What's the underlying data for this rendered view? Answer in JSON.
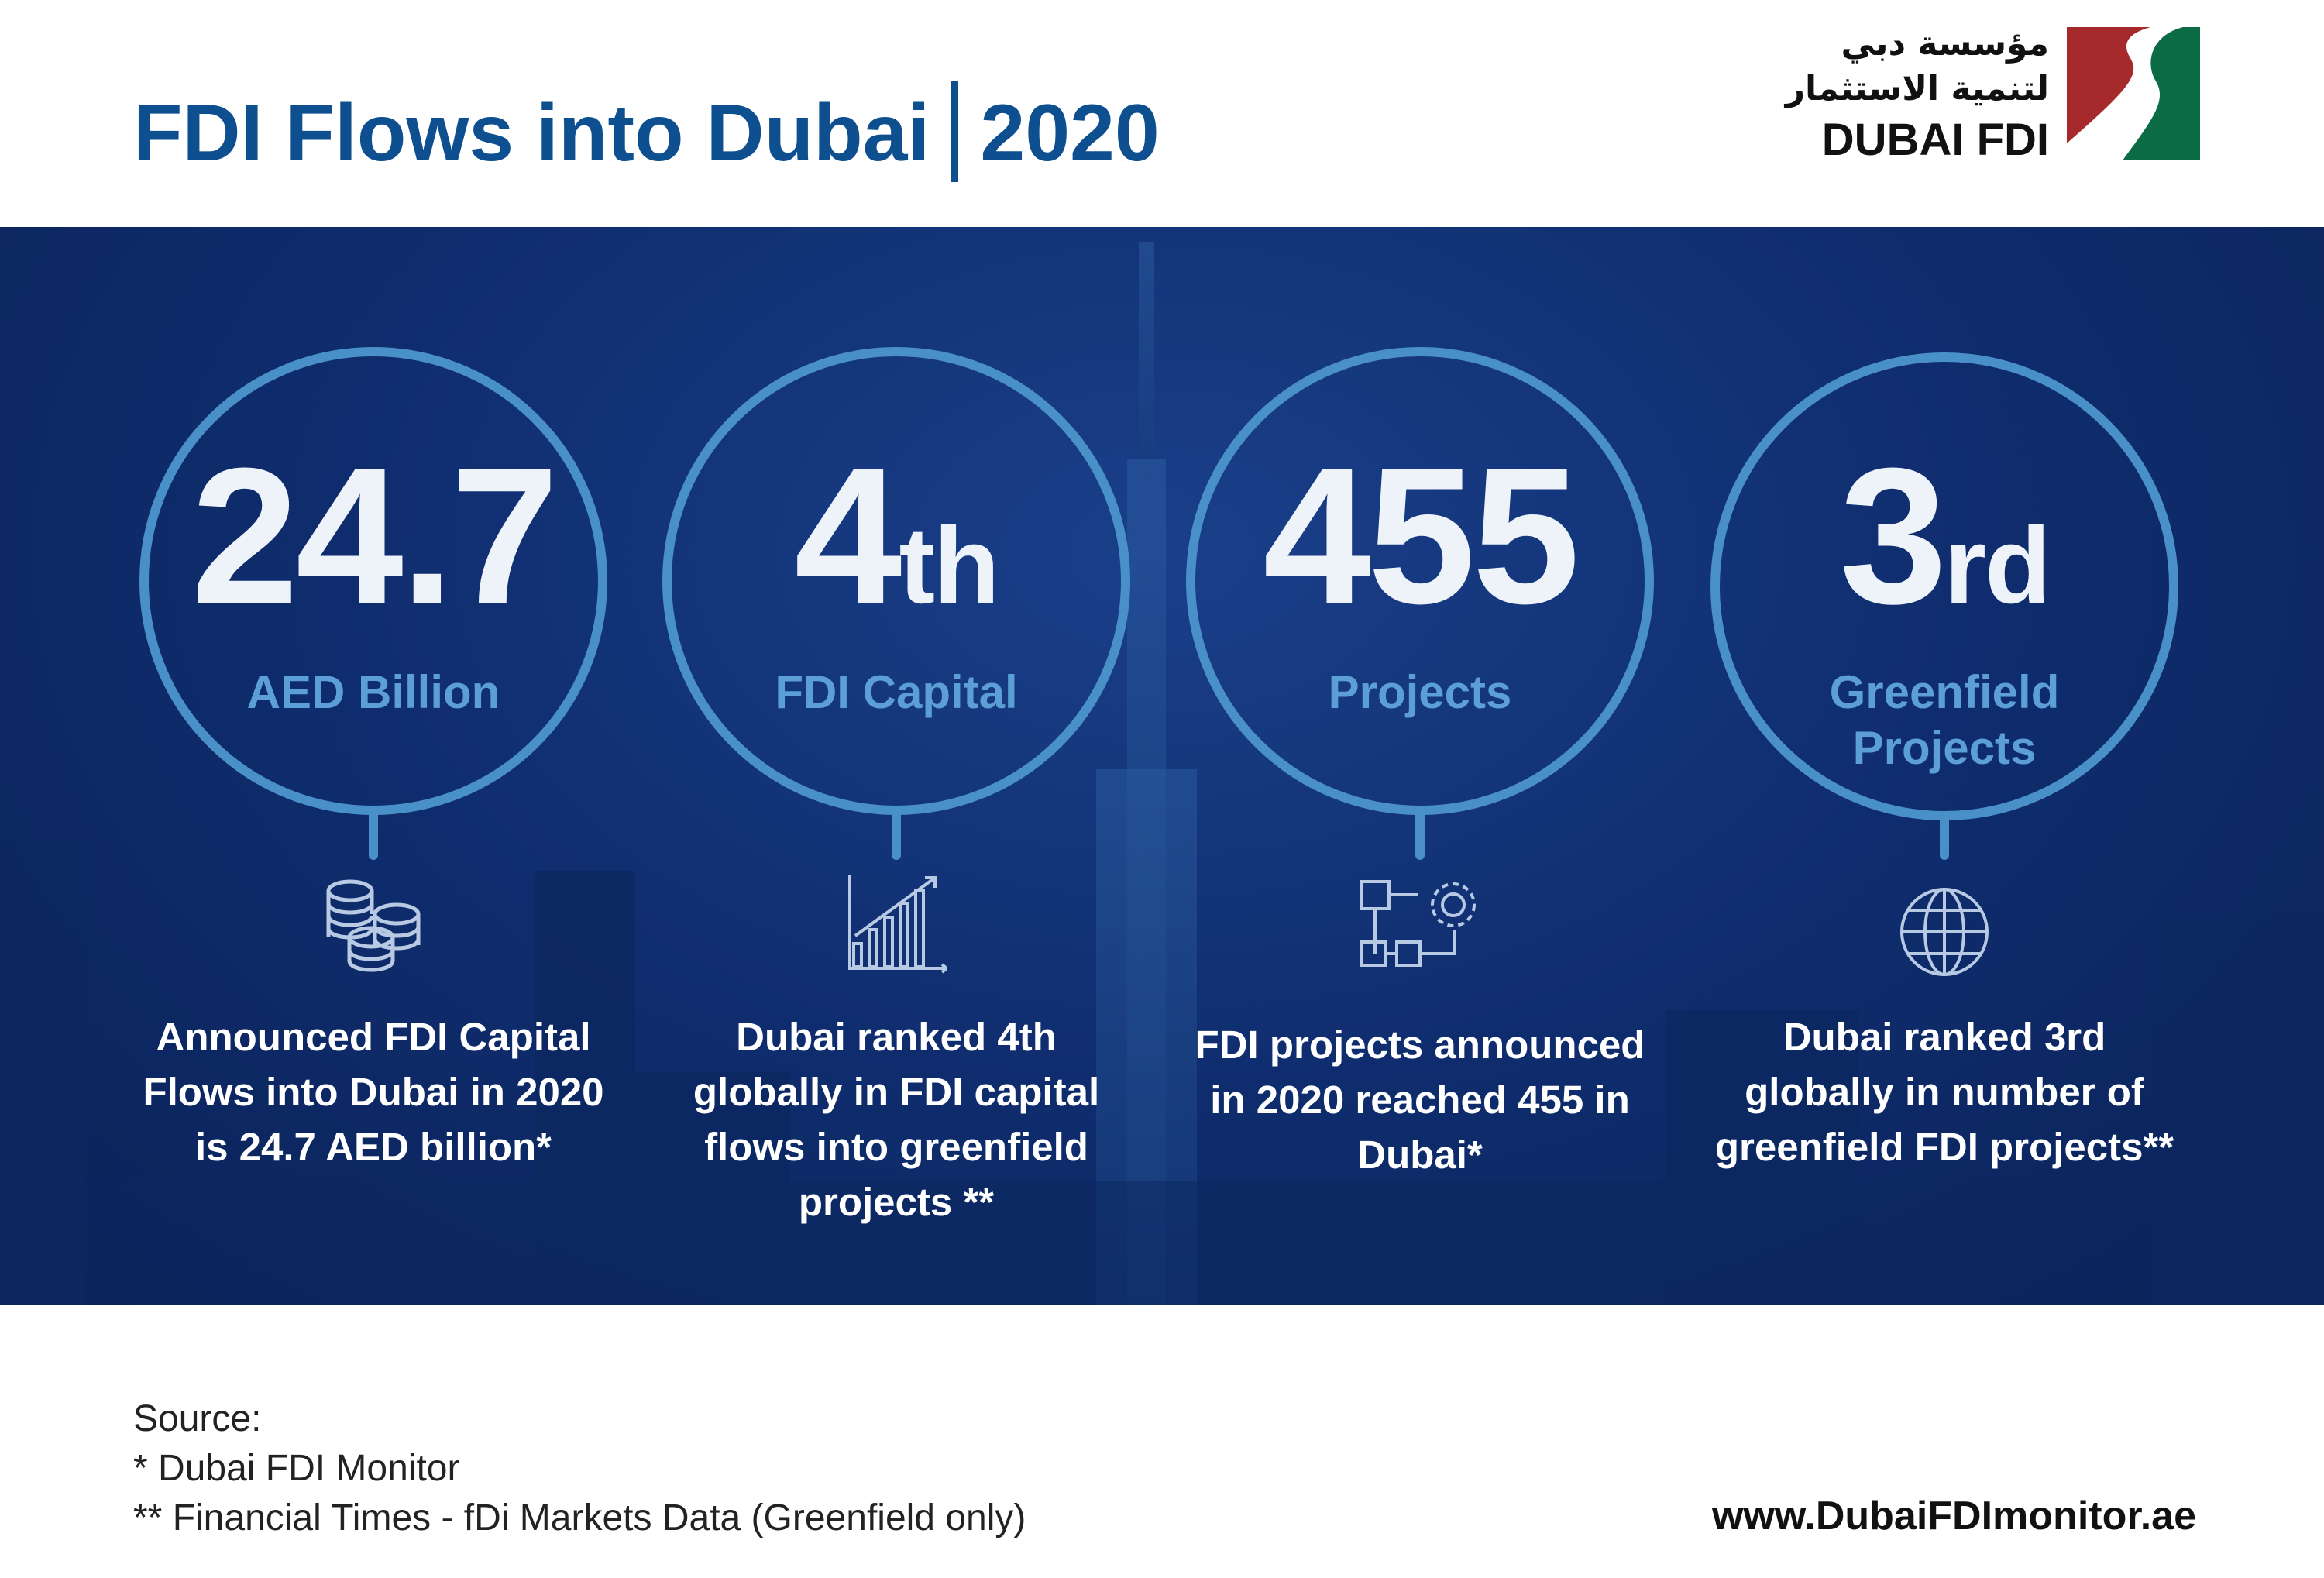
{
  "header": {
    "title_main": "FDI Flows into Dubai",
    "title_year": "2020"
  },
  "logo": {
    "arabic_line1": "مؤسسة دبي",
    "arabic_line2": "لتنمية الاستثمار",
    "english": "DUBAI FDI",
    "colors": {
      "red": "#a62a2c",
      "green": "#0b6b45"
    }
  },
  "colors": {
    "title": "#0d4f8f",
    "ring": "#4a90c8",
    "label": "#5b9fd6",
    "band": "#0f2d6e"
  },
  "stats": [
    {
      "value": "24.7",
      "suffix": "",
      "label": "AED Billion",
      "icon": "coins-stack-icon",
      "desc": [
        "Announced FDI Capital",
        "Flows into Dubai in 2020",
        "is 24.7 AED billion*"
      ]
    },
    {
      "value": "4",
      "suffix": "th",
      "label": "FDI Capital",
      "icon": "growth-bar-chart-icon",
      "desc": [
        "Dubai ranked 4th",
        "globally in FDI capital",
        "flows into greenfield",
        "projects **"
      ]
    },
    {
      "value": "455",
      "suffix": "",
      "label": "Projects",
      "icon": "project-flow-gear-icon",
      "desc": [
        "FDI projects announced",
        "in 2020 reached 455 in",
        "Dubai*"
      ]
    },
    {
      "value": "3",
      "suffix": "rd",
      "label": "Greenfield Projects",
      "icon": "globe-icon",
      "desc": [
        "Dubai ranked 3rd",
        "globally in number of",
        "greenfield FDI projects**"
      ]
    }
  ],
  "footer": {
    "source_title": "Source:",
    "sources": [
      "* Dubai FDI Monitor",
      "** Financial Times - fDi Markets Data (Greenfield only)"
    ],
    "website": "www.DubaiFDImonitor.ae"
  }
}
